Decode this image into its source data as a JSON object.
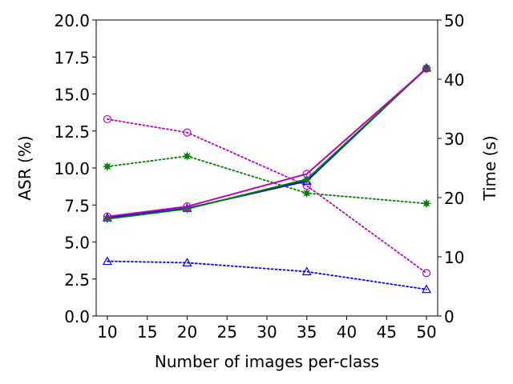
{
  "chart_data": {
    "type": "line",
    "xlabel": "Number of images per-class",
    "ylabel_left": "ASR (%)",
    "ylabel_right": "Time (s)",
    "x": [
      10,
      20,
      35,
      50
    ],
    "xlim": [
      8.6,
      51.4
    ],
    "xticks": [
      "10",
      "15",
      "20",
      "25",
      "30",
      "35",
      "40",
      "45",
      "50"
    ],
    "ylim_left": [
      0,
      20
    ],
    "yticks_left": [
      "0.0",
      "2.5",
      "5.0",
      "7.5",
      "10.0",
      "12.5",
      "15.0",
      "17.5",
      "20.0"
    ],
    "ylim_right": [
      0,
      50
    ],
    "yticks_right": [
      "0",
      "10",
      "20",
      "30",
      "40",
      "50"
    ],
    "series": [
      {
        "axis": "left",
        "color": "#0000ff",
        "style": "dotted",
        "marker": "triangle",
        "values": [
          3.7,
          3.6,
          3.0,
          1.8
        ]
      },
      {
        "axis": "left",
        "color": "#008000",
        "style": "dotted",
        "marker": "star",
        "values": [
          10.1,
          10.8,
          8.3,
          7.6
        ]
      },
      {
        "axis": "left",
        "color": "#bf00bf",
        "style": "dotted",
        "marker": "circle",
        "values": [
          13.3,
          12.4,
          8.8,
          2.9
        ]
      },
      {
        "axis": "right",
        "color": "#0000ff",
        "style": "solid",
        "marker": "triangle",
        "values": [
          16.6,
          18.2,
          22.8,
          41.9
        ]
      },
      {
        "axis": "right",
        "color": "#008000",
        "style": "solid",
        "marker": "star",
        "values": [
          16.4,
          18.1,
          23.1,
          41.8
        ]
      },
      {
        "axis": "right",
        "color": "#bf00bf",
        "style": "solid",
        "marker": "circle",
        "values": [
          16.8,
          18.5,
          24.0,
          41.8
        ]
      }
    ],
    "grid": false,
    "legend": "none"
  }
}
